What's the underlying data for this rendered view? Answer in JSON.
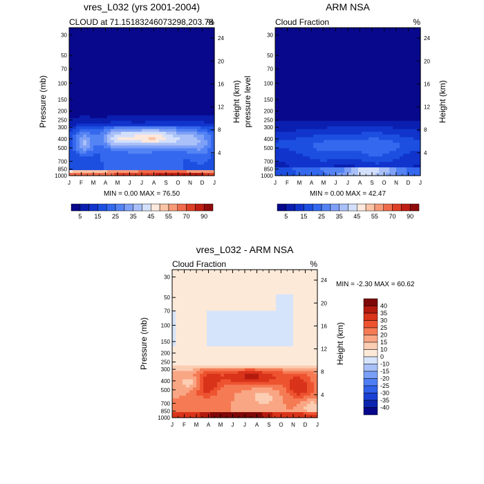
{
  "chart_data": [
    {
      "type": "heatmap",
      "id": "model",
      "title": "vres_L032 (yrs 2001-2004)",
      "subtitle_left": "CLOUD at 71.15183246073298,203.78",
      "subtitle_right": "%",
      "ylabel_left": "Pressure (mb)",
      "ylabel_right": "Height (km)",
      "xticks": [
        "J",
        "F",
        "M",
        "A",
        "M",
        "J",
        "J",
        "A",
        "S",
        "O",
        "N",
        "D",
        "J"
      ],
      "pressure_ticks": [
        "30",
        "50",
        "70",
        "100",
        "150",
        "200",
        "250",
        "300",
        "400",
        "500",
        "700",
        "850",
        "1000"
      ],
      "pressure_values": [
        30,
        50,
        70,
        100,
        150,
        200,
        250,
        300,
        400,
        500,
        700,
        850,
        1000
      ],
      "height_ticks": [
        "24",
        "20",
        "16",
        "12",
        "8",
        "4"
      ],
      "stats": "MIN =  0.00 MAX =  76.50",
      "colorbar_labels": [
        "5",
        "15",
        "25",
        "35",
        "45",
        "55",
        "70",
        "90"
      ]
    },
    {
      "type": "heatmap",
      "id": "obs",
      "title": "ARM NSA",
      "subtitle_left": "Cloud Fraction",
      "subtitle_right": "%",
      "ylabel_left": "pressure level",
      "ylabel_right": "Height (km)",
      "xticks": [
        "J",
        "F",
        "M",
        "A",
        "M",
        "J",
        "J",
        "A",
        "S",
        "O",
        "N",
        "D",
        "J"
      ],
      "pressure_ticks": [
        "30",
        "50",
        "70",
        "100",
        "150",
        "200",
        "250",
        "300",
        "400",
        "500",
        "700",
        "850",
        "1000"
      ],
      "pressure_values": [
        30,
        50,
        70,
        100,
        150,
        200,
        250,
        300,
        400,
        500,
        700,
        850,
        1000
      ],
      "height_ticks": [
        "24",
        "20",
        "16",
        "12",
        "8",
        "4"
      ],
      "stats": "MIN =  0.00 MAX =  42.47",
      "colorbar_labels": [
        "5",
        "15",
        "25",
        "35",
        "45",
        "55",
        "70",
        "90"
      ]
    },
    {
      "type": "heatmap",
      "id": "diff",
      "title": "vres_L032 - ARM NSA",
      "subtitle_left": "Cloud Fraction",
      "subtitle_right": "%",
      "ylabel_left": "Pressure (mb)",
      "ylabel_right": "Height (km)",
      "xticks": [
        "J",
        "F",
        "M",
        "A",
        "M",
        "J",
        "J",
        "A",
        "S",
        "O",
        "N",
        "D",
        "J"
      ],
      "pressure_ticks": [
        "30",
        "50",
        "70",
        "100",
        "150",
        "200",
        "250",
        "300",
        "400",
        "500",
        "700",
        "850",
        "1000"
      ],
      "pressure_values": [
        30,
        50,
        70,
        100,
        150,
        200,
        250,
        300,
        400,
        500,
        700,
        850,
        1000
      ],
      "height_ticks": [
        "24",
        "20",
        "16",
        "12",
        "8",
        "4"
      ],
      "stats": "MIN =  -2.30 MAX =  60.62",
      "colorbar_labels": [
        "40",
        "35",
        "30",
        "25",
        "20",
        "15",
        "10",
        "0",
        "-10",
        "-15",
        "-20",
        "-25",
        "-30",
        "-35",
        "-40"
      ]
    }
  ],
  "colors": {
    "seq": [
      "#08088c",
      "#0a1fb0",
      "#1034cc",
      "#1c4fe0",
      "#3468ee",
      "#5483f4",
      "#7ea0f6",
      "#a9c0f8",
      "#d4e0fb",
      "#fce8dc",
      "#fac4a6",
      "#f79a78",
      "#f06b4b",
      "#dd3e26",
      "#bf1e12",
      "#8e0c0a"
    ],
    "div": [
      "#08088c",
      "#0c24b0",
      "#1a40d4",
      "#3060ea",
      "#4f7ef4",
      "#7b9ff6",
      "#a7c0f8",
      "#d6e4fb",
      "#fde9d8",
      "#fbcdb2",
      "#f9a684",
      "#f57b54",
      "#ee5330",
      "#d9331a",
      "#b41a0e",
      "#7e0808"
    ]
  }
}
